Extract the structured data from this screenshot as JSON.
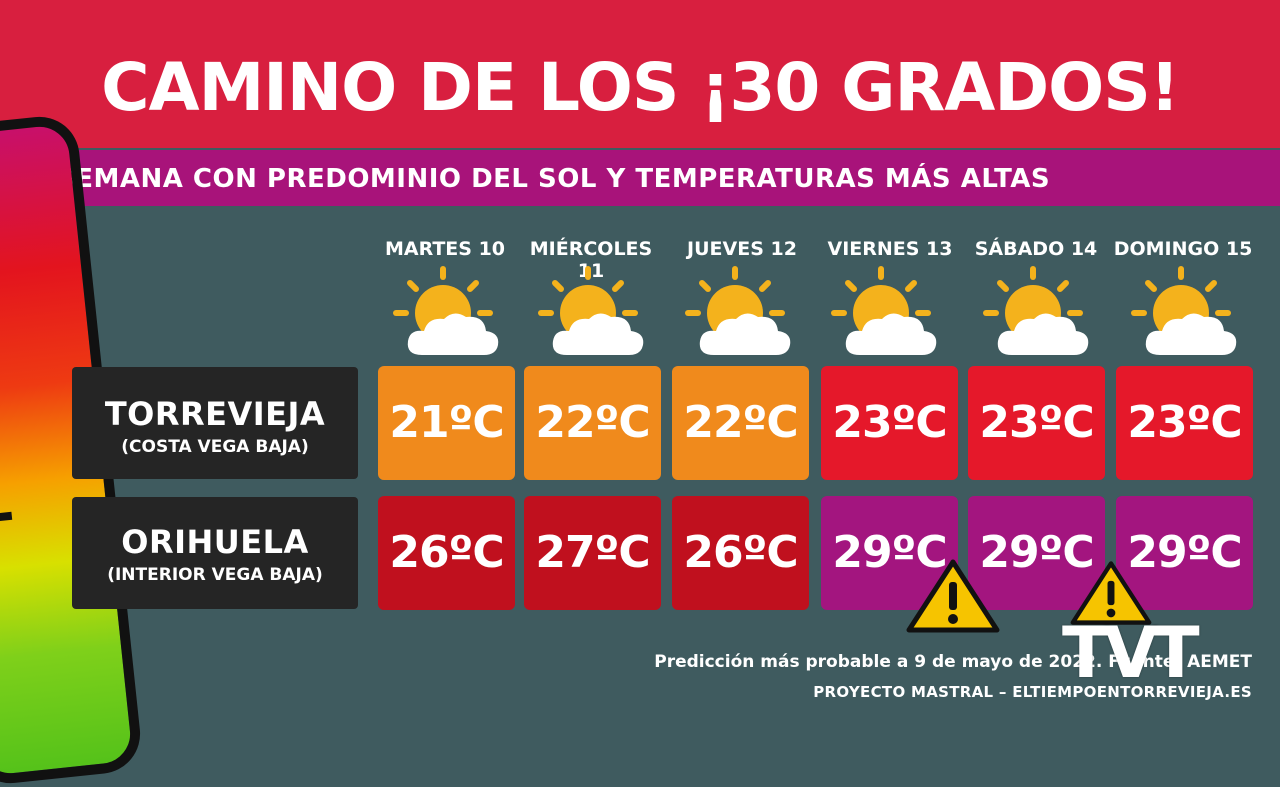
{
  "title": "CAMINO DE LOS ¡30 GRADOS!",
  "subtitle": "SEMANA CON PREDOMINIO DEL SOL Y TEMPERATURAS MÁS ALTAS",
  "days": [
    "MARTES 10",
    "MIÉRCOLES 11",
    "JUEVES 12",
    "VIERNES 13",
    "SÁBADO 14",
    "DOMINGO 15"
  ],
  "weather_icon": "sun-behind-cloud-icon",
  "rows": [
    {
      "name": "TORREVIEJA",
      "sub": "(COSTA VEGA BAJA)",
      "temps": [
        "21ºC",
        "22ºC",
        "22ºC",
        "23ºC",
        "23ºC",
        "23ºC"
      ]
    },
    {
      "name": "ORIHUELA",
      "sub": "(INTERIOR VEGA BAJA)",
      "temps": [
        "26ºC",
        "27ºC",
        "26ºC",
        "29ºC",
        "29ºC",
        "29ºC"
      ]
    }
  ],
  "colors": {
    "header": "#d81f3f",
    "subheader": "#a8137a",
    "background": "#3f5b5f",
    "orange": "#f08a1c",
    "red": "#e5182a",
    "dark_red": "#c0101e",
    "purple": "#a3157f"
  },
  "footer": {
    "line1": "Predicción más probable a 9 de mayo de 2022. Fuente: AEMET",
    "line2": "PROYECTO MASTRAL – ELTIEMPOENTORREVIEJA.ES"
  },
  "logo": "TVT"
}
